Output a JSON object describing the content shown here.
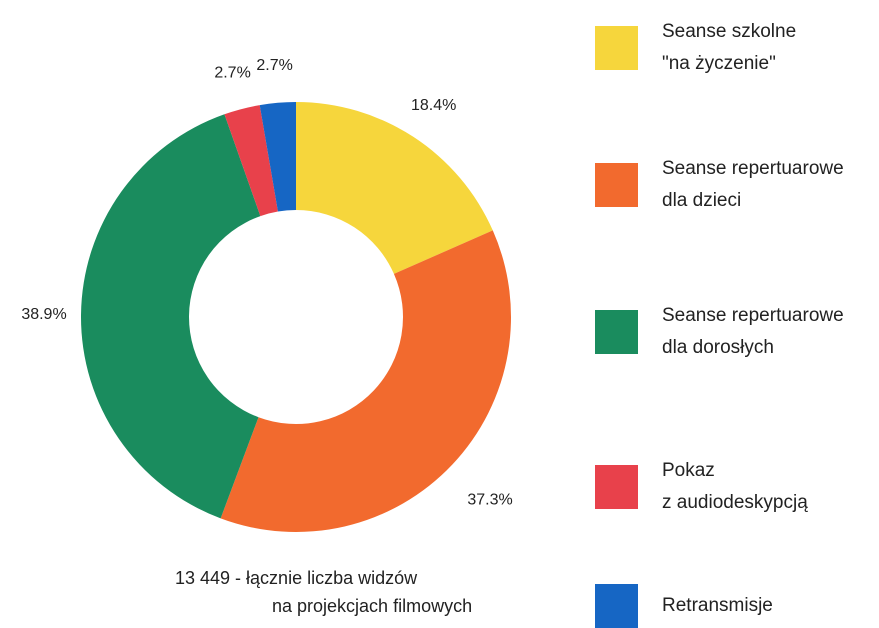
{
  "chart_data": {
    "type": "donut",
    "categories": [
      "Seanse szkolne\n\"na życzenie\"",
      "Seanse repertuarowe\ndla dzieci",
      "Seanse repertuarowe\ndla dorosłych",
      "Pokaz\nz audiodeskypcją",
      "Retransmisje"
    ],
    "values": [
      18.4,
      37.3,
      38.9,
      2.7,
      2.7
    ],
    "value_labels": [
      "18.4%",
      "37.3%",
      "38.9%",
      "2.7%",
      "2.7%"
    ],
    "colors": [
      "#f6d63c",
      "#f26a2e",
      "#1a8c5e",
      "#e8414b",
      "#1666c4"
    ],
    "annotation": [
      "13 449  - łącznie liczba widzów",
      "na projekcjach filmowych"
    ]
  }
}
